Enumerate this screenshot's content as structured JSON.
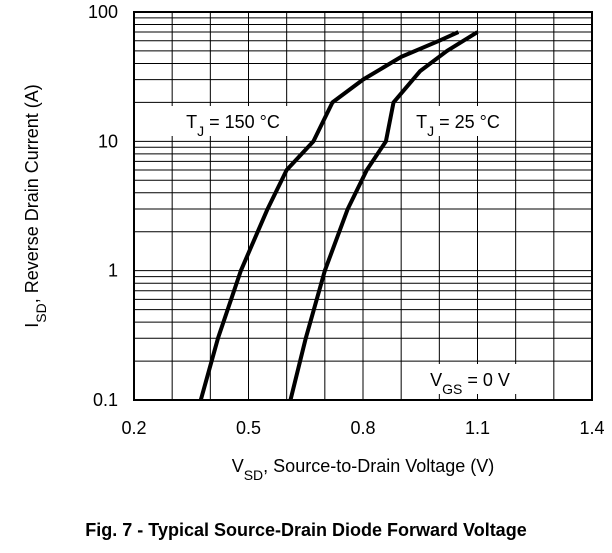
{
  "chart_data": {
    "type": "line",
    "caption": "Fig. 7 - Typical Source-Drain Diode Forward Voltage",
    "x_label": [
      "V",
      "SD",
      ", Source-to-Drain Voltage (V)"
    ],
    "y_label": [
      "I",
      "SD",
      ", Reverse Drain Current (A)"
    ],
    "xlim": [
      0.2,
      1.4
    ],
    "xticks": [
      0.2,
      0.5,
      0.8,
      1.1,
      1.4
    ],
    "ylim": [
      0.1,
      100
    ],
    "yticks": [
      0.1,
      1,
      10,
      100
    ],
    "log_y": true,
    "grid": true,
    "minor_grid": true,
    "series": [
      {
        "color": "#000000",
        "x": [
          0.375,
          0.42,
          0.48,
          0.55,
          0.6,
          0.67,
          0.72,
          0.8,
          0.9,
          1.0,
          1.05
        ],
        "values": [
          0.1,
          0.3,
          1,
          3,
          6,
          10,
          20,
          30,
          45,
          60,
          70
        ]
      },
      {
        "color": "#000000",
        "x": [
          0.61,
          0.65,
          0.7,
          0.76,
          0.81,
          0.86,
          0.88,
          0.95,
          1.02,
          1.1
        ],
        "values": [
          0.1,
          0.3,
          1,
          3,
          6,
          10,
          20,
          35,
          50,
          70
        ]
      }
    ],
    "annotations": [
      {
        "parts": [
          "T",
          "J",
          " = 150 °C"
        ]
      },
      {
        "parts": [
          "T",
          "J",
          " = 25 °C"
        ]
      },
      {
        "parts": [
          "V",
          "GS",
          " = 0 V"
        ]
      }
    ]
  }
}
